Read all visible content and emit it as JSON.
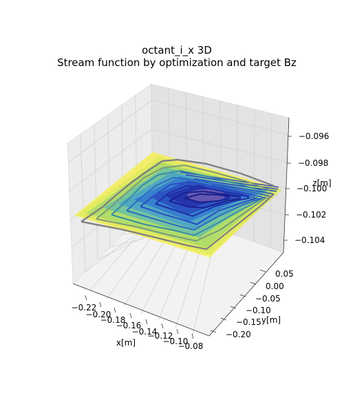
{
  "title_line1": "octant_i_x 3D",
  "title_line2": "Stream function by optimization and target Bz",
  "chart_data": {
    "type": "surface3d",
    "title": "octant_i_x 3D\nStream function by optimization and target Bz",
    "xlabel": "x[m]",
    "ylabel": "y[m]",
    "zlabel": "z[m]",
    "xticks": [
      "−0.22",
      "−0.20",
      "−0.18",
      "−0.16",
      "−0.14",
      "−0.12",
      "−0.10",
      "−0.08"
    ],
    "yticks": [
      "−0.20",
      "−0.15",
      "−0.10",
      "−0.05",
      "0.00",
      "0.05"
    ],
    "zticks": [
      "−0.104",
      "−0.102",
      "−0.100",
      "−0.098",
      "−0.096"
    ],
    "xlim": [
      -0.235,
      -0.07
    ],
    "ylim": [
      -0.235,
      0.07
    ],
    "zlim": [
      -0.105,
      -0.0955
    ],
    "surface_z": -0.1,
    "grid": true,
    "colors": {
      "target_plane": "#f5ee55",
      "contour_dark": "#1f2fa8",
      "contour_mid": "#2a6fcf",
      "contour_light": "#6ac0c4",
      "outer_contour": "#808080",
      "pane_left": "#ececec",
      "pane_right": "#e3e3e3",
      "pane_floor": "#f2f2f2"
    }
  }
}
